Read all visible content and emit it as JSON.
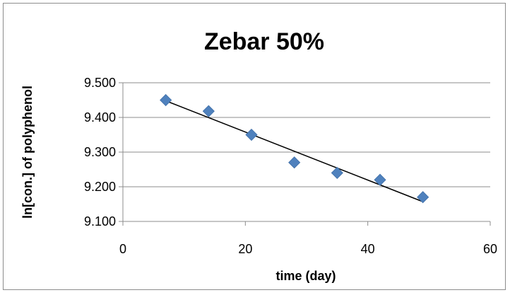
{
  "chart_data": {
    "type": "scatter",
    "title": "Zebar 50%",
    "xlabel": "time (day)",
    "ylabel": "ln[con.] of polyphenol",
    "xlim": [
      0,
      60
    ],
    "ylim": [
      9.1,
      9.5
    ],
    "x_ticks": [
      "0",
      "20",
      "40",
      "60"
    ],
    "y_ticks": [
      "9.100",
      "9.200",
      "9.300",
      "9.400",
      "9.500"
    ],
    "grid": "horizontal",
    "legend": "none",
    "series": [
      {
        "x": [
          7,
          14,
          21,
          28,
          35,
          42,
          49
        ],
        "y": [
          9.45,
          9.418,
          9.35,
          9.27,
          9.24,
          9.22,
          9.17
        ],
        "marker": "diamond",
        "color": "#4f81bd"
      }
    ],
    "trendline": {
      "type": "linear",
      "color": "#000000",
      "x_start": 7,
      "y_start": 9.448,
      "x_end": 49,
      "y_end": 9.157
    }
  }
}
